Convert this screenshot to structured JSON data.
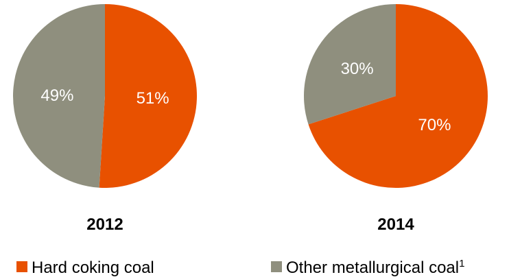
{
  "chart_data": [
    {
      "type": "pie",
      "title": "2012",
      "slices": [
        {
          "name": "Hard coking coal",
          "value": 51,
          "label": "51%"
        },
        {
          "name": "Other metallurgical coal",
          "value": 49,
          "label": "49%"
        }
      ]
    },
    {
      "type": "pie",
      "title": "2014",
      "slices": [
        {
          "name": "Hard coking coal",
          "value": 70,
          "label": "70%"
        },
        {
          "name": "Other metallurgical coal",
          "value": 30,
          "label": "30%"
        }
      ]
    }
  ],
  "legend": {
    "items": [
      {
        "name": "Hard coking coal",
        "label": "Hard coking coal",
        "color": "#E85100"
      },
      {
        "name": "Other metallurgical coal",
        "label": "Other metallurgical coal",
        "sup": "1",
        "color": "#8F8F7E"
      }
    ]
  },
  "colors": {
    "Hard coking coal": "#E85100",
    "Other metallurgical coal": "#8F8F7E"
  }
}
